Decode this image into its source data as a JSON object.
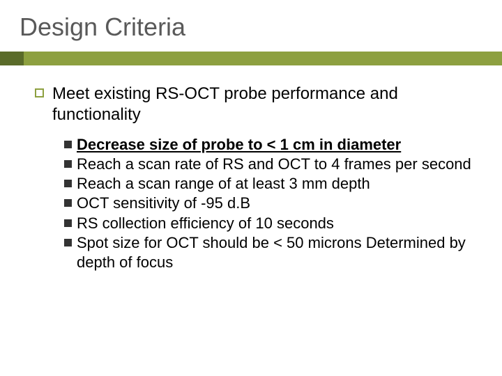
{
  "title": "Design Criteria",
  "colors": {
    "accent": "#8da040",
    "accent_dark": "#5a6b2a",
    "title_text": "#595959",
    "body_text": "#000000",
    "bullet_filled": "#333333",
    "background": "#ffffff"
  },
  "typography": {
    "title_fontsize": 36,
    "top_fontsize": 24,
    "sub_fontsize": 22,
    "font_family": "Arial"
  },
  "main": {
    "text": "Meet existing RS-OCT probe performance and functionality",
    "sub": [
      {
        "text": "Decrease size of probe to < 1 cm in diameter",
        "bold_underline": true
      },
      {
        "text": "Reach a scan rate of RS and OCT to 4 frames per second"
      },
      {
        "text": "Reach a scan range of at least 3 mm depth"
      },
      {
        "text": "OCT sensitivity of -95 d.B"
      },
      {
        "text": "RS collection efficiency of 10 seconds"
      },
      {
        "text": "Spot size for OCT should be < 50 microns Determined by depth of focus"
      }
    ]
  }
}
